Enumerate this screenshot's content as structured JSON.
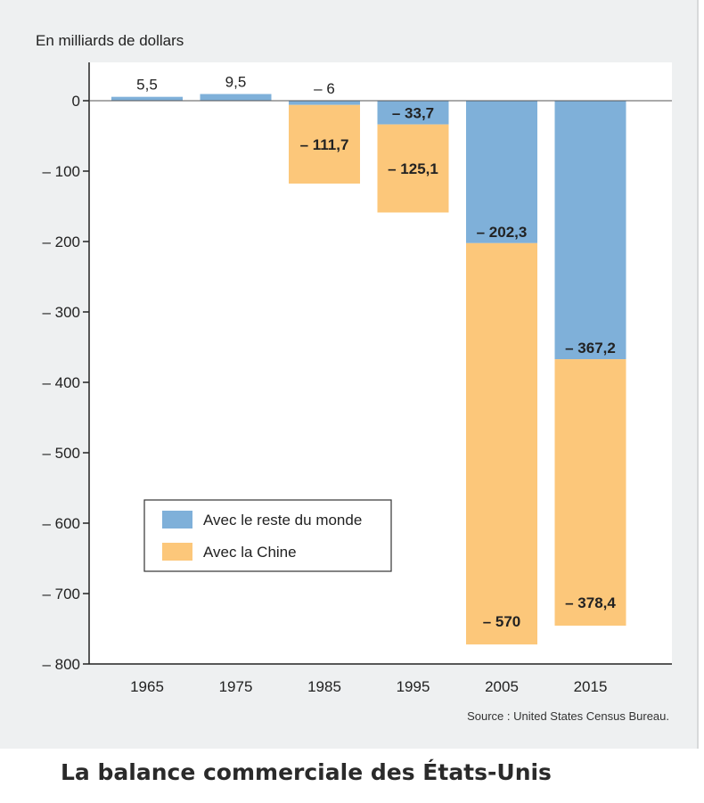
{
  "chart_data": {
    "type": "bar",
    "stacked": true,
    "title": "La balance commerciale des États-Unis",
    "ylabel": "En milliards de dollars",
    "source": "Source : United States Census Bureau.",
    "categories": [
      "1965",
      "1975",
      "1985",
      "1995",
      "2005",
      "2015"
    ],
    "ylim": [
      -800,
      50
    ],
    "yticks": [
      0,
      -100,
      -200,
      -300,
      -400,
      -500,
      -600,
      -700,
      -800
    ],
    "ytick_labels": [
      "0",
      "– 100",
      "– 200",
      "– 300",
      "– 400",
      "– 500",
      "– 600",
      "– 700",
      "– 800"
    ],
    "grid": false,
    "legend_position": "lower-left",
    "series": [
      {
        "name": "Avec le reste du monde",
        "color": "#7fb0d9",
        "values": [
          5.5,
          9.5,
          -6,
          -33.7,
          -202.3,
          -367.2
        ],
        "labels": [
          "5,5",
          "9,5",
          "– 6",
          "– 33,7",
          "– 202,3",
          "– 367,2"
        ]
      },
      {
        "name": "Avec la Chine",
        "color": "#fcc77a",
        "values": [
          0,
          0,
          -111.7,
          -125.1,
          -570,
          -378.4
        ],
        "labels": [
          "",
          "",
          "– 111,7",
          "– 125,1",
          "– 570",
          "– 378,4"
        ]
      }
    ]
  }
}
